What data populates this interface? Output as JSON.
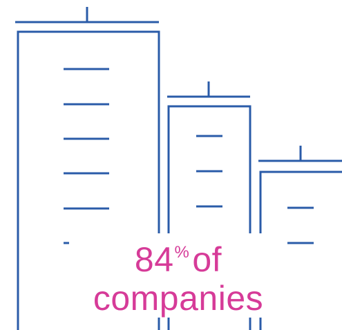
{
  "colors": {
    "stroke": "#2a5ba8",
    "text": "#d63b98",
    "background": "#ffffff"
  },
  "icon": "office-buildings-icon",
  "stat": {
    "number": "84",
    "unit": "%",
    "line1_suffix": "of",
    "line2": "companies"
  }
}
